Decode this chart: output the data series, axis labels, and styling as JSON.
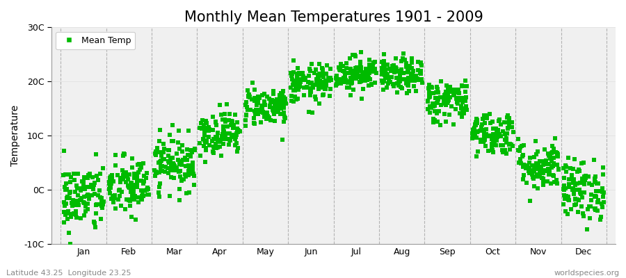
{
  "title": "Monthly Mean Temperatures 1901 - 2009",
  "ylabel": "Temperature",
  "subtitle_left": "Latitude 43.25  Longitude 23.25",
  "subtitle_right": "worldspecies.org",
  "ylim": [
    -10,
    30
  ],
  "yticks": [
    -10,
    0,
    10,
    20,
    30
  ],
  "ytick_labels": [
    "-10C",
    "0C",
    "10C",
    "20C",
    "30C"
  ],
  "months": [
    "Jan",
    "Feb",
    "Mar",
    "Apr",
    "May",
    "Jun",
    "Jul",
    "Aug",
    "Sep",
    "Oct",
    "Nov",
    "Dec"
  ],
  "mean_temps": [
    -1.5,
    0.5,
    5.0,
    10.5,
    15.5,
    19.5,
    21.5,
    21.0,
    16.5,
    10.5,
    4.5,
    0.0
  ],
  "std_temps": [
    3.2,
    2.8,
    2.5,
    2.0,
    1.8,
    1.8,
    1.6,
    1.6,
    2.0,
    2.0,
    2.3,
    2.8
  ],
  "n_years": 109,
  "marker_color": "#00BB00",
  "marker_size": 4,
  "background_color": "#F0F0F0",
  "fig_background": "#FFFFFF",
  "dashed_line_color": "#999999",
  "title_fontsize": 15,
  "axis_label_fontsize": 10,
  "tick_fontsize": 9,
  "legend_label": "Mean Temp",
  "seed": 42
}
